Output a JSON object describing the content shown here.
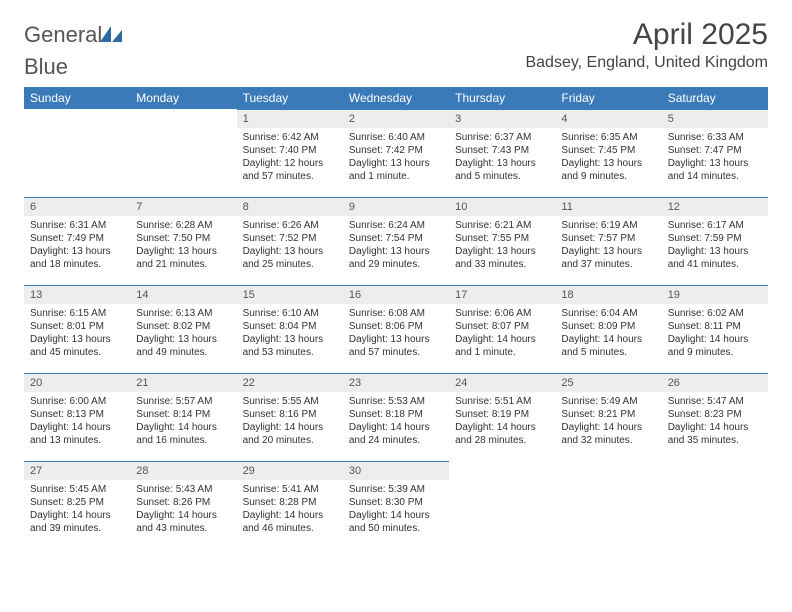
{
  "brand": {
    "part1": "General",
    "part2": "Blue"
  },
  "header": {
    "title": "April 2025",
    "location": "Badsey, England, United Kingdom"
  },
  "colors": {
    "accent": "#3a7ab8",
    "header_bg": "#3a7ab8",
    "daynum_bg": "#eceded",
    "text": "#333333",
    "background": "#ffffff"
  },
  "calendar": {
    "type": "table",
    "day_headers": [
      "Sunday",
      "Monday",
      "Tuesday",
      "Wednesday",
      "Thursday",
      "Friday",
      "Saturday"
    ],
    "weeks": [
      [
        null,
        null,
        {
          "n": "1",
          "sr": "Sunrise: 6:42 AM",
          "ss": "Sunset: 7:40 PM",
          "dl1": "Daylight: 12 hours",
          "dl2": "and 57 minutes."
        },
        {
          "n": "2",
          "sr": "Sunrise: 6:40 AM",
          "ss": "Sunset: 7:42 PM",
          "dl1": "Daylight: 13 hours",
          "dl2": "and 1 minute."
        },
        {
          "n": "3",
          "sr": "Sunrise: 6:37 AM",
          "ss": "Sunset: 7:43 PM",
          "dl1": "Daylight: 13 hours",
          "dl2": "and 5 minutes."
        },
        {
          "n": "4",
          "sr": "Sunrise: 6:35 AM",
          "ss": "Sunset: 7:45 PM",
          "dl1": "Daylight: 13 hours",
          "dl2": "and 9 minutes."
        },
        {
          "n": "5",
          "sr": "Sunrise: 6:33 AM",
          "ss": "Sunset: 7:47 PM",
          "dl1": "Daylight: 13 hours",
          "dl2": "and 14 minutes."
        }
      ],
      [
        {
          "n": "6",
          "sr": "Sunrise: 6:31 AM",
          "ss": "Sunset: 7:49 PM",
          "dl1": "Daylight: 13 hours",
          "dl2": "and 18 minutes."
        },
        {
          "n": "7",
          "sr": "Sunrise: 6:28 AM",
          "ss": "Sunset: 7:50 PM",
          "dl1": "Daylight: 13 hours",
          "dl2": "and 21 minutes."
        },
        {
          "n": "8",
          "sr": "Sunrise: 6:26 AM",
          "ss": "Sunset: 7:52 PM",
          "dl1": "Daylight: 13 hours",
          "dl2": "and 25 minutes."
        },
        {
          "n": "9",
          "sr": "Sunrise: 6:24 AM",
          "ss": "Sunset: 7:54 PM",
          "dl1": "Daylight: 13 hours",
          "dl2": "and 29 minutes."
        },
        {
          "n": "10",
          "sr": "Sunrise: 6:21 AM",
          "ss": "Sunset: 7:55 PM",
          "dl1": "Daylight: 13 hours",
          "dl2": "and 33 minutes."
        },
        {
          "n": "11",
          "sr": "Sunrise: 6:19 AM",
          "ss": "Sunset: 7:57 PM",
          "dl1": "Daylight: 13 hours",
          "dl2": "and 37 minutes."
        },
        {
          "n": "12",
          "sr": "Sunrise: 6:17 AM",
          "ss": "Sunset: 7:59 PM",
          "dl1": "Daylight: 13 hours",
          "dl2": "and 41 minutes."
        }
      ],
      [
        {
          "n": "13",
          "sr": "Sunrise: 6:15 AM",
          "ss": "Sunset: 8:01 PM",
          "dl1": "Daylight: 13 hours",
          "dl2": "and 45 minutes."
        },
        {
          "n": "14",
          "sr": "Sunrise: 6:13 AM",
          "ss": "Sunset: 8:02 PM",
          "dl1": "Daylight: 13 hours",
          "dl2": "and 49 minutes."
        },
        {
          "n": "15",
          "sr": "Sunrise: 6:10 AM",
          "ss": "Sunset: 8:04 PM",
          "dl1": "Daylight: 13 hours",
          "dl2": "and 53 minutes."
        },
        {
          "n": "16",
          "sr": "Sunrise: 6:08 AM",
          "ss": "Sunset: 8:06 PM",
          "dl1": "Daylight: 13 hours",
          "dl2": "and 57 minutes."
        },
        {
          "n": "17",
          "sr": "Sunrise: 6:06 AM",
          "ss": "Sunset: 8:07 PM",
          "dl1": "Daylight: 14 hours",
          "dl2": "and 1 minute."
        },
        {
          "n": "18",
          "sr": "Sunrise: 6:04 AM",
          "ss": "Sunset: 8:09 PM",
          "dl1": "Daylight: 14 hours",
          "dl2": "and 5 minutes."
        },
        {
          "n": "19",
          "sr": "Sunrise: 6:02 AM",
          "ss": "Sunset: 8:11 PM",
          "dl1": "Daylight: 14 hours",
          "dl2": "and 9 minutes."
        }
      ],
      [
        {
          "n": "20",
          "sr": "Sunrise: 6:00 AM",
          "ss": "Sunset: 8:13 PM",
          "dl1": "Daylight: 14 hours",
          "dl2": "and 13 minutes."
        },
        {
          "n": "21",
          "sr": "Sunrise: 5:57 AM",
          "ss": "Sunset: 8:14 PM",
          "dl1": "Daylight: 14 hours",
          "dl2": "and 16 minutes."
        },
        {
          "n": "22",
          "sr": "Sunrise: 5:55 AM",
          "ss": "Sunset: 8:16 PM",
          "dl1": "Daylight: 14 hours",
          "dl2": "and 20 minutes."
        },
        {
          "n": "23",
          "sr": "Sunrise: 5:53 AM",
          "ss": "Sunset: 8:18 PM",
          "dl1": "Daylight: 14 hours",
          "dl2": "and 24 minutes."
        },
        {
          "n": "24",
          "sr": "Sunrise: 5:51 AM",
          "ss": "Sunset: 8:19 PM",
          "dl1": "Daylight: 14 hours",
          "dl2": "and 28 minutes."
        },
        {
          "n": "25",
          "sr": "Sunrise: 5:49 AM",
          "ss": "Sunset: 8:21 PM",
          "dl1": "Daylight: 14 hours",
          "dl2": "and 32 minutes."
        },
        {
          "n": "26",
          "sr": "Sunrise: 5:47 AM",
          "ss": "Sunset: 8:23 PM",
          "dl1": "Daylight: 14 hours",
          "dl2": "and 35 minutes."
        }
      ],
      [
        {
          "n": "27",
          "sr": "Sunrise: 5:45 AM",
          "ss": "Sunset: 8:25 PM",
          "dl1": "Daylight: 14 hours",
          "dl2": "and 39 minutes."
        },
        {
          "n": "28",
          "sr": "Sunrise: 5:43 AM",
          "ss": "Sunset: 8:26 PM",
          "dl1": "Daylight: 14 hours",
          "dl2": "and 43 minutes."
        },
        {
          "n": "29",
          "sr": "Sunrise: 5:41 AM",
          "ss": "Sunset: 8:28 PM",
          "dl1": "Daylight: 14 hours",
          "dl2": "and 46 minutes."
        },
        {
          "n": "30",
          "sr": "Sunrise: 5:39 AM",
          "ss": "Sunset: 8:30 PM",
          "dl1": "Daylight: 14 hours",
          "dl2": "and 50 minutes."
        },
        null,
        null,
        null
      ]
    ]
  }
}
